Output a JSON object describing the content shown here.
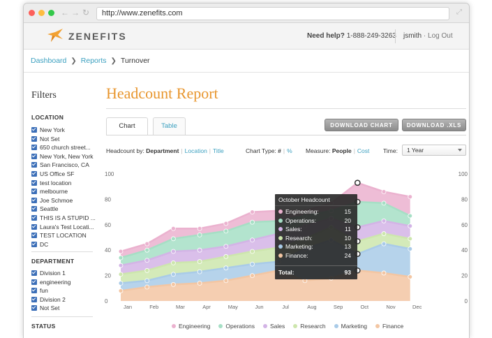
{
  "browser": {
    "url": "http://www.zenefits.com"
  },
  "header": {
    "logo_text": "ZENEFITS",
    "help_label": "Need help?",
    "help_phone": "1-888-249-3263",
    "username": "jsmith",
    "logout_label": "· Log Out"
  },
  "breadcrumb": {
    "items": [
      "Dashboard",
      "Reports",
      "Turnover"
    ]
  },
  "sidebar": {
    "title": "Filters",
    "groups": [
      {
        "title": "LOCATION",
        "items": [
          "New York",
          "Not Set",
          "650 church street...",
          "New York, New York",
          "San Francisco, CA",
          "US Office SF",
          "test location",
          "melbourne",
          "Joe Schmoe",
          "Seattle",
          "THIS IS A STUPID ...",
          "Laura's Test Locati...",
          "TEST LOCATION",
          "DC"
        ]
      },
      {
        "title": "DEPARTMENT",
        "items": [
          "Division 1",
          "engineering",
          "fun",
          "Division 2",
          "Not Set"
        ]
      },
      {
        "title": "STATUS",
        "items": []
      }
    ]
  },
  "main": {
    "title": "Headcount Report",
    "tabs": [
      "Chart",
      "Table"
    ],
    "download_chart_label": "DOWNLOAD CHART",
    "download_xls_label": "DOWNLOAD .XLS",
    "controls": {
      "headcount_by_label": "Headcount by:",
      "headcount_by_options": [
        "Department",
        "Location",
        "Title"
      ],
      "chart_type_label": "Chart Type:",
      "chart_type_options": [
        "#",
        "%"
      ],
      "measure_label": "Measure:",
      "measure_options": [
        "People",
        "Cost"
      ],
      "time_label": "Time:",
      "time_selected": "1 Year"
    }
  },
  "tooltip": {
    "title": "October Headcount",
    "rows": [
      {
        "label": "Engineering:",
        "value": "15"
      },
      {
        "label": "Operations:",
        "value": "20"
      },
      {
        "label": "Sales:",
        "value": "11"
      },
      {
        "label": "Research:",
        "value": "10"
      },
      {
        "label": "Marketing:",
        "value": "13"
      },
      {
        "label": "Finance:",
        "value": "24"
      }
    ],
    "total_label": "Total:",
    "total_value": "93"
  },
  "colors": {
    "accent": "#e8962e",
    "link": "#3a9fbf"
  },
  "chart_data": {
    "type": "area",
    "stacked": true,
    "categories": [
      "Jan",
      "Feb",
      "Mar",
      "Apr",
      "May",
      "Jun",
      "Jul",
      "Aug",
      "Sep",
      "Oct",
      "Nov",
      "Dec"
    ],
    "ylim": [
      0,
      100
    ],
    "yticks": [
      0,
      20,
      40,
      60,
      80,
      100
    ],
    "grid": false,
    "legend_position": "bottom",
    "highlight_category": "Oct",
    "series": [
      {
        "name": "Finance",
        "color": "#f3c6a3",
        "values": [
          8,
          11,
          13,
          14,
          16,
          20,
          24,
          16,
          18,
          24,
          22,
          19
        ]
      },
      {
        "name": "Marketing",
        "color": "#a9cbe8",
        "values": [
          6,
          5,
          8,
          9,
          10,
          9,
          7,
          25,
          30,
          13,
          23,
          22
        ]
      },
      {
        "name": "Research",
        "color": "#cde6ad",
        "values": [
          7,
          8,
          9,
          8,
          9,
          10,
          11,
          8,
          10,
          10,
          8,
          8
        ]
      },
      {
        "name": "Sales",
        "color": "#d3b4e6",
        "values": [
          7,
          8,
          9,
          9,
          8,
          9,
          11,
          10,
          7,
          11,
          10,
          10
        ]
      },
      {
        "name": "Operations",
        "color": "#a6dfc5",
        "values": [
          6,
          8,
          10,
          12,
          12,
          14,
          10,
          8,
          6,
          20,
          14,
          8
        ]
      },
      {
        "name": "Engineering",
        "color": "#ebb2cf",
        "values": [
          5,
          5,
          8,
          5,
          6,
          8,
          8,
          4,
          6,
          15,
          9,
          15
        ]
      }
    ]
  }
}
